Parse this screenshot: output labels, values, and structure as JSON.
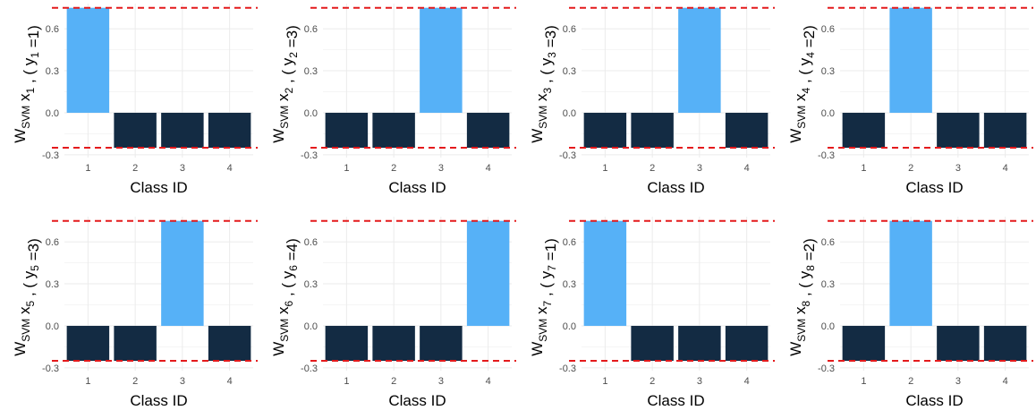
{
  "colors": {
    "true_class": "#56b1f7",
    "other_class": "#132b43",
    "margin_line": "#e41a1c",
    "grid": "#ebebeb"
  },
  "chart_data": [
    {
      "type": "bar",
      "ylabel": {
        "x": "1",
        "y": "1"
      },
      "xlabel": "Class ID",
      "categories": [
        "1",
        "2",
        "3",
        "4"
      ],
      "values": [
        0.75,
        -0.25,
        -0.25,
        -0.25
      ],
      "true_class": 1,
      "ylim": [
        -0.32,
        0.78
      ],
      "yticks": [
        -0.3,
        0.0,
        0.3,
        0.6
      ],
      "ytick_labels": [
        "-0.3",
        "0.0",
        "0.3",
        "0.6"
      ],
      "hlines": [
        0.75,
        -0.25
      ],
      "grid": true
    },
    {
      "type": "bar",
      "ylabel": {
        "x": "2",
        "y": "3"
      },
      "xlabel": "Class ID",
      "categories": [
        "1",
        "2",
        "3",
        "4"
      ],
      "values": [
        -0.25,
        -0.25,
        0.75,
        -0.25
      ],
      "true_class": 3,
      "ylim": [
        -0.32,
        0.78
      ],
      "yticks": [
        -0.3,
        0.0,
        0.3,
        0.6
      ],
      "ytick_labels": [
        "-0.3",
        "0.0",
        "0.3",
        "0.6"
      ],
      "hlines": [
        0.75,
        -0.25
      ],
      "grid": true
    },
    {
      "type": "bar",
      "ylabel": {
        "x": "3",
        "y": "3"
      },
      "xlabel": "Class ID",
      "categories": [
        "1",
        "2",
        "3",
        "4"
      ],
      "values": [
        -0.25,
        -0.25,
        0.75,
        -0.25
      ],
      "true_class": 3,
      "ylim": [
        -0.32,
        0.78
      ],
      "yticks": [
        -0.3,
        0.0,
        0.3,
        0.6
      ],
      "ytick_labels": [
        "-0.3",
        "0.0",
        "0.3",
        "0.6"
      ],
      "hlines": [
        0.75,
        -0.25
      ],
      "grid": true
    },
    {
      "type": "bar",
      "ylabel": {
        "x": "4",
        "y": "2"
      },
      "xlabel": "Class ID",
      "categories": [
        "1",
        "2",
        "3",
        "4"
      ],
      "values": [
        -0.25,
        0.75,
        -0.25,
        -0.25
      ],
      "true_class": 2,
      "ylim": [
        -0.32,
        0.78
      ],
      "yticks": [
        -0.3,
        0.0,
        0.3,
        0.6
      ],
      "ytick_labels": [
        "-0.3",
        "0.0",
        "0.3",
        "0.6"
      ],
      "hlines": [
        0.75,
        -0.25
      ],
      "grid": true
    },
    {
      "type": "bar",
      "ylabel": {
        "x": "5",
        "y": "3"
      },
      "xlabel": "Class ID",
      "categories": [
        "1",
        "2",
        "3",
        "4"
      ],
      "values": [
        -0.25,
        -0.25,
        0.75,
        -0.25
      ],
      "true_class": 3,
      "ylim": [
        -0.32,
        0.78
      ],
      "yticks": [
        -0.3,
        0.0,
        0.3,
        0.6
      ],
      "ytick_labels": [
        "-0.3",
        "0.0",
        "0.3",
        "0.6"
      ],
      "hlines": [
        0.75,
        -0.25
      ],
      "grid": true
    },
    {
      "type": "bar",
      "ylabel": {
        "x": "6",
        "y": "4"
      },
      "xlabel": "Class ID",
      "categories": [
        "1",
        "2",
        "3",
        "4"
      ],
      "values": [
        -0.25,
        -0.25,
        -0.25,
        0.75
      ],
      "true_class": 4,
      "ylim": [
        -0.32,
        0.78
      ],
      "yticks": [
        -0.3,
        0.0,
        0.3,
        0.6
      ],
      "ytick_labels": [
        "-0.3",
        "0.0",
        "0.3",
        "0.6"
      ],
      "hlines": [
        0.75,
        -0.25
      ],
      "grid": true
    },
    {
      "type": "bar",
      "ylabel": {
        "x": "7",
        "y": "1"
      },
      "xlabel": "Class ID",
      "categories": [
        "1",
        "2",
        "3",
        "4"
      ],
      "values": [
        0.75,
        -0.25,
        -0.25,
        -0.25
      ],
      "true_class": 1,
      "ylim": [
        -0.32,
        0.78
      ],
      "yticks": [
        -0.3,
        0.0,
        0.3,
        0.6
      ],
      "ytick_labels": [
        "-0.3",
        "0.0",
        "0.3",
        "0.6"
      ],
      "hlines": [
        0.75,
        -0.25
      ],
      "grid": true
    },
    {
      "type": "bar",
      "ylabel": {
        "x": "8",
        "y": "2"
      },
      "xlabel": "Class ID",
      "categories": [
        "1",
        "2",
        "3",
        "4"
      ],
      "values": [
        -0.25,
        0.75,
        -0.25,
        -0.25
      ],
      "true_class": 2,
      "ylim": [
        -0.32,
        0.78
      ],
      "yticks": [
        -0.3,
        0.0,
        0.3,
        0.6
      ],
      "ytick_labels": [
        "-0.3",
        "0.0",
        "0.3",
        "0.6"
      ],
      "hlines": [
        0.75,
        -0.25
      ],
      "grid": true
    }
  ],
  "ylabel_parts": {
    "w": "W",
    "w_sub": "SVM",
    "x": "x",
    "sep": ", (",
    "y": "y",
    "eq": "=",
    "close": ")"
  }
}
